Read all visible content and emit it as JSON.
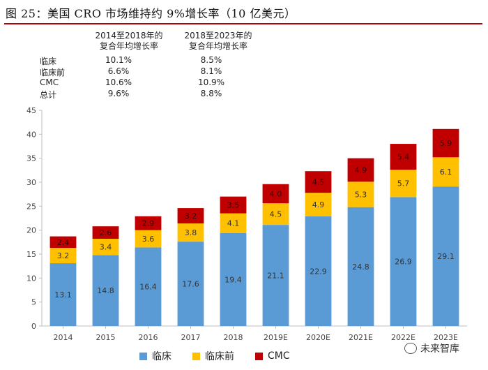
{
  "title": "图 25：美国 CRO 市场维持约 9%增长率（10 亿美元）",
  "cagr_table": {
    "header1_line1": "2014至2018年的",
    "header1_line2": "复合年均增长率",
    "header2_line1": "2018至2023年的",
    "header2_line2": "复合年均增长率",
    "rows": [
      {
        "label": "临床",
        "v1": "10.1%",
        "v2": "8.5%"
      },
      {
        "label": "临床前",
        "v1": "6.6%",
        "v2": "8.1%"
      },
      {
        "label": "CMC",
        "v1": "10.6%",
        "v2": "10.9%"
      },
      {
        "label": "总计",
        "v1": "9.6%",
        "v2": "8.8%"
      }
    ]
  },
  "chart_data": {
    "type": "bar",
    "stacked": true,
    "categories": [
      "2014",
      "2015",
      "2016",
      "2017",
      "2018",
      "2019E",
      "2020E",
      "2021E",
      "2022E",
      "2023E"
    ],
    "series": [
      {
        "name": "临床",
        "color": "#5b9bd5",
        "values": [
          13.1,
          14.8,
          16.4,
          17.6,
          19.4,
          21.1,
          22.9,
          24.8,
          26.9,
          29.1
        ]
      },
      {
        "name": "临床前",
        "color": "#ffc000",
        "values": [
          3.2,
          3.4,
          3.6,
          3.8,
          4.1,
          4.5,
          4.9,
          5.3,
          5.7,
          6.1
        ]
      },
      {
        "name": "CMC",
        "color": "#c00000",
        "values": [
          2.4,
          2.6,
          2.9,
          3.2,
          3.5,
          4.0,
          4.5,
          4.9,
          5.4,
          5.9
        ]
      }
    ],
    "ylim": [
      0,
      45
    ],
    "yticks": [
      "0",
      "5",
      "10",
      "15",
      "20",
      "25",
      "30",
      "35",
      "40",
      "45"
    ],
    "grid": false,
    "legend": "bottom"
  },
  "legend": {
    "items": [
      {
        "label": "临床",
        "color": "#5b9bd5"
      },
      {
        "label": "临床前",
        "color": "#ffc000"
      },
      {
        "label": "CMC",
        "color": "#c00000"
      }
    ]
  },
  "watermark": "未来智库"
}
